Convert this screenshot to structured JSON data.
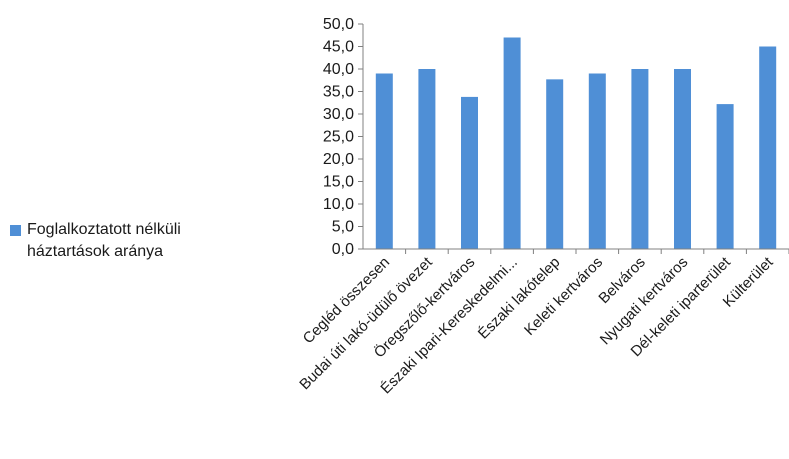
{
  "chart_data": {
    "type": "bar",
    "categories": [
      "Cegléd összesen",
      "Budai úti lakó-üdülő övezet",
      "Öregszőlő-kertváros",
      "Északi Ipari-Kereskedelmi...",
      "Északi lakótelep",
      "Keleti kertváros",
      "Belváros",
      "Nyugati kertváros",
      "Dél-keleti iparterület",
      "Külterület"
    ],
    "series": [
      {
        "name": "Foglalkoztatott nélküli háztartások aránya",
        "values": [
          39.0,
          40.0,
          33.8,
          47.0,
          37.7,
          39.0,
          40.0,
          40.0,
          32.2,
          45.0
        ]
      }
    ],
    "ylim": [
      0,
      50
    ],
    "yticks": [
      "0,0",
      "5,0",
      "10,0",
      "15,0",
      "20,0",
      "25,0",
      "30,0",
      "35,0",
      "40,0",
      "45,0",
      "50,0"
    ],
    "ytick_values": [
      0,
      5,
      10,
      15,
      20,
      25,
      30,
      35,
      40,
      45,
      50
    ],
    "grid": false,
    "legend_position": "left",
    "bar_color": "#4f8fd6",
    "axis_color": "#808080"
  },
  "legend": {
    "label": "Foglalkoztatott nélküli háztartások aránya",
    "color": "#4f8fd6"
  }
}
